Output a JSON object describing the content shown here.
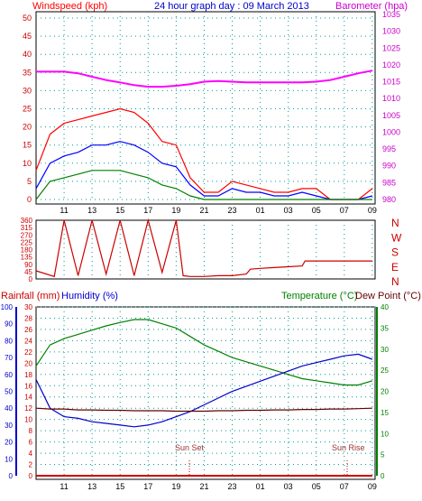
{
  "header": {
    "windspeed_label": "Windspeed (kph)",
    "title": "24 hour graph day : 09 March 2013",
    "barometer_label": "Barometer (hpa)"
  },
  "bottom_header": {
    "rainfall_label": "Rainfall (mm)",
    "humidity_label": "Humidity (%)",
    "temperature_label": "Temperature (°C)",
    "dewpoint_label": "Dew Point (°C)"
  },
  "annotations": {
    "sun_set": "Sun Set",
    "sun_rise": "Sun Rise"
  },
  "colors": {
    "wind_gust": "#ff0000",
    "wind_avg": "#0000ff",
    "wind_lull": "#008000",
    "barometer": "#ff00ff",
    "direction": "#cc0000",
    "humidity": "#0000cc",
    "temperature": "#008000",
    "dewpoint": "#660000",
    "rainfall": "#cc0000",
    "grid": "#009999"
  },
  "chart_data": [
    {
      "type": "line",
      "title": "24 hour graph day : 09 March 2013",
      "x_ticks": [
        "11",
        "13",
        "15",
        "17",
        "19",
        "21",
        "23",
        "01",
        "03",
        "05",
        "07",
        "09"
      ],
      "left_axis": {
        "label": "Windspeed (kph)",
        "ylim": [
          0,
          50
        ],
        "ticks": [
          0,
          5,
          10,
          15,
          20,
          25,
          30,
          35,
          40,
          45,
          50
        ]
      },
      "right_axis": {
        "label": "Barometer (hpa)",
        "ylim": [
          980,
          1035
        ],
        "ticks": [
          980,
          985,
          990,
          995,
          1000,
          1005,
          1010,
          1015,
          1020,
          1025,
          1030,
          1035
        ]
      },
      "series": [
        {
          "name": "Barometer (hpa)",
          "axis": "right",
          "hours": [
            9,
            10,
            11,
            12,
            13,
            14,
            15,
            16,
            17,
            18,
            19,
            20,
            21,
            22,
            23,
            24,
            25,
            26,
            27,
            28,
            29,
            30,
            31,
            32,
            33
          ],
          "values": [
            1018,
            1018,
            1018,
            1017.5,
            1016.5,
            1015.5,
            1014.8,
            1014,
            1013.5,
            1013.5,
            1013.8,
            1014.3,
            1015,
            1015.2,
            1015,
            1014.8,
            1014.8,
            1014.8,
            1014.8,
            1014.8,
            1015,
            1015.5,
            1016.5,
            1017.5,
            1018.3
          ]
        },
        {
          "name": "Gust",
          "axis": "left",
          "hours": [
            9,
            10,
            11,
            12,
            13,
            14,
            15,
            16,
            17,
            18,
            19,
            20,
            21,
            22,
            23,
            24,
            25,
            26,
            27,
            28,
            29,
            30,
            31,
            32,
            33
          ],
          "values": [
            8,
            18,
            21,
            22,
            23,
            24,
            25,
            24,
            21,
            16,
            15,
            6,
            2,
            2,
            5,
            4,
            3,
            2,
            2,
            3,
            3,
            0,
            0,
            0,
            3
          ]
        },
        {
          "name": "Average",
          "axis": "left",
          "hours": [
            9,
            10,
            11,
            12,
            13,
            14,
            15,
            16,
            17,
            18,
            19,
            20,
            21,
            22,
            23,
            24,
            25,
            26,
            27,
            28,
            29,
            30,
            31,
            32,
            33
          ],
          "values": [
            3,
            10,
            12,
            13,
            15,
            15,
            16,
            15,
            13,
            10,
            9,
            4,
            1,
            1,
            3,
            2,
            2,
            1,
            1,
            2,
            1,
            0,
            0,
            0,
            1
          ]
        },
        {
          "name": "Lull",
          "axis": "left",
          "hours": [
            9,
            10,
            11,
            12,
            13,
            14,
            15,
            16,
            17,
            18,
            19,
            20,
            21,
            22,
            23,
            24,
            25,
            26,
            27,
            28,
            29,
            30,
            31,
            32,
            33
          ],
          "values": [
            0,
            5,
            6,
            7,
            8,
            8,
            8,
            7,
            6,
            4,
            3,
            1,
            0,
            0,
            0,
            0,
            0,
            0,
            0,
            0,
            0,
            0,
            0,
            0,
            0
          ]
        }
      ]
    },
    {
      "type": "line",
      "title": "",
      "x_ticks": [],
      "left_axis": {
        "label": "",
        "ylim": [
          0,
          360
        ],
        "ticks": [
          0,
          45,
          90,
          135,
          180,
          225,
          270,
          315,
          360
        ]
      },
      "right_axis": {
        "label": "",
        "tick_labels": [
          "N",
          "W",
          "S",
          "E",
          "N"
        ]
      },
      "series": [
        {
          "name": "Wind direction",
          "hours": [
            9,
            10.3,
            11,
            12,
            13,
            14,
            15,
            16,
            17,
            18,
            19,
            19.5,
            20,
            21,
            22,
            23,
            24,
            24.3,
            25,
            26,
            27,
            28,
            28.2,
            29,
            30,
            31,
            32,
            33
          ],
          "values": [
            50,
            15,
            360,
            20,
            360,
            30,
            360,
            20,
            360,
            40,
            360,
            20,
            15,
            15,
            20,
            20,
            30,
            60,
            65,
            70,
            75,
            80,
            110,
            110,
            110,
            110,
            110,
            110
          ]
        }
      ]
    },
    {
      "type": "line",
      "title": "",
      "x_ticks": [
        "11",
        "13",
        "15",
        "17",
        "19",
        "21",
        "23",
        "01",
        "03",
        "05",
        "07",
        "09"
      ],
      "left_axis_rain": {
        "label": "Rainfall (mm)",
        "ylim": [
          0,
          30
        ],
        "ticks": [
          0,
          2,
          4,
          6,
          8,
          10,
          12,
          14,
          16,
          18,
          20,
          22,
          24,
          26,
          28,
          30
        ]
      },
      "left_axis_humidity": {
        "label": "Humidity (%)",
        "ylim": [
          0,
          100
        ],
        "ticks": [
          0,
          10,
          20,
          30,
          40,
          50,
          60,
          70,
          80,
          90,
          100
        ]
      },
      "right_axis": {
        "label": "Temperature (°C)",
        "ylim": [
          0,
          40
        ],
        "ticks": [
          0,
          5,
          10,
          15,
          20,
          25,
          30,
          35,
          40
        ]
      },
      "series": [
        {
          "name": "Temperature (°C)",
          "axis": "right",
          "hours": [
            9,
            10,
            11,
            12,
            13,
            14,
            15,
            16,
            17,
            18,
            19,
            20,
            21,
            22,
            23,
            24,
            25,
            26,
            27,
            28,
            29,
            30,
            31,
            32,
            33
          ],
          "values": [
            26,
            31,
            32.5,
            33.5,
            34.5,
            35.5,
            36.3,
            37,
            37,
            36,
            35,
            33,
            31,
            29.5,
            28,
            27,
            26,
            25,
            24,
            23,
            22.5,
            22,
            21.5,
            21.5,
            22.5
          ]
        },
        {
          "name": "Humidity (%)",
          "axis": "humidity",
          "hours": [
            9,
            10,
            11,
            12,
            13,
            14,
            15,
            16,
            17,
            18,
            19,
            20,
            21,
            22,
            23,
            24,
            25,
            26,
            27,
            28,
            29,
            30,
            31,
            32,
            33
          ],
          "values": [
            57,
            40,
            35,
            34,
            32,
            31,
            30,
            29,
            30,
            32,
            35,
            38,
            42,
            46,
            50,
            53,
            56,
            59,
            62,
            65,
            67,
            69,
            71,
            72,
            69
          ]
        },
        {
          "name": "Dew Point (°C)",
          "axis": "right",
          "hours": [
            9,
            10,
            11,
            12,
            13,
            14,
            15,
            16,
            17,
            18,
            19,
            20,
            21,
            22,
            23,
            24,
            25,
            26,
            27,
            28,
            29,
            30,
            31,
            32,
            33
          ],
          "values": [
            16,
            15.8,
            15.8,
            15.6,
            15.6,
            15.5,
            15.5,
            15.4,
            15.4,
            15.4,
            15.3,
            15.3,
            15.3,
            15.4,
            15.4,
            15.5,
            15.5,
            15.6,
            15.6,
            15.7,
            15.7,
            15.8,
            15.8,
            15.9,
            16
          ]
        },
        {
          "name": "Rainfall (mm)",
          "axis": "rain",
          "hours": [
            9,
            33
          ],
          "values": [
            0,
            0
          ]
        }
      ]
    }
  ]
}
